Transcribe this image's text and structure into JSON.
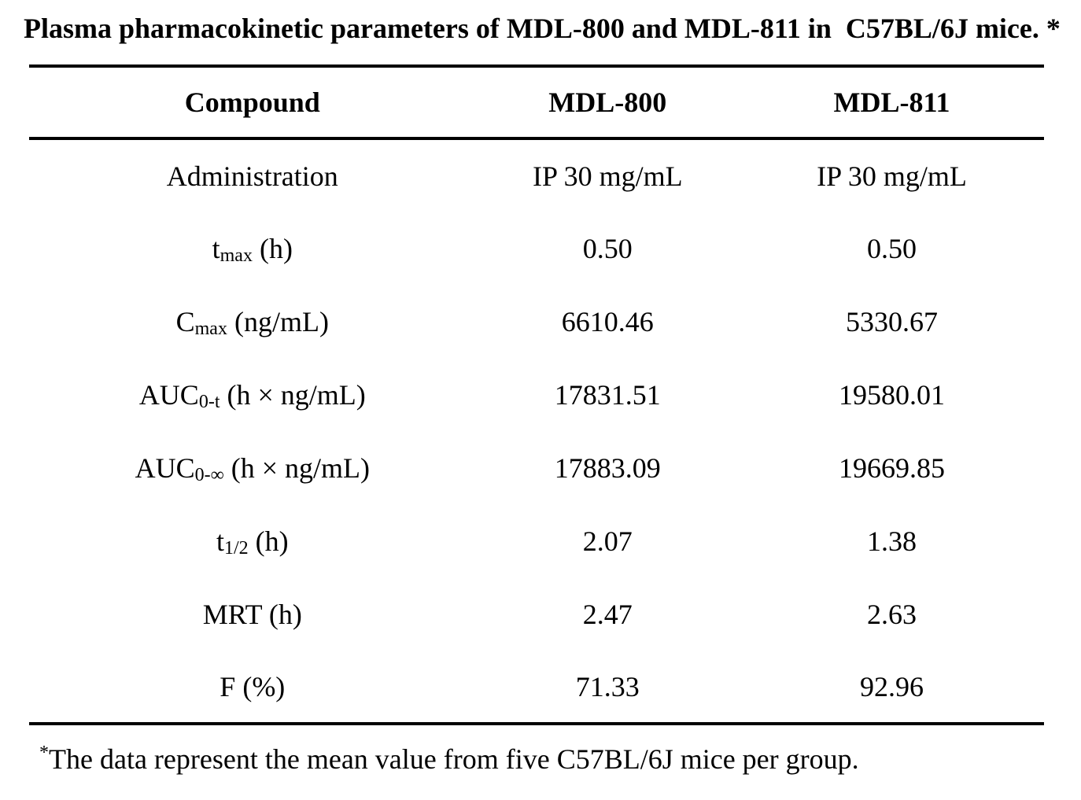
{
  "colors": {
    "background": "#ffffff",
    "text": "#000000",
    "rule": "#000000"
  },
  "title": "Plasma pharmacokinetic parameters of MDL-800 and MDL-811 in  C57BL/6J mice. *",
  "table": {
    "headers": [
      "Compound",
      "MDL-800",
      "MDL-811"
    ],
    "rows": [
      {
        "param_base": "Administration",
        "param_sub": "",
        "param_suffix": "",
        "mdl800": "IP 30 mg/mL",
        "mdl811": "IP 30 mg/mL"
      },
      {
        "param_base": "t",
        "param_sub": "max",
        "param_suffix": " (h)",
        "mdl800": "0.50",
        "mdl811": "0.50"
      },
      {
        "param_base": "C",
        "param_sub": "max",
        "param_suffix": " (ng/mL)",
        "mdl800": "6610.46",
        "mdl811": "5330.67"
      },
      {
        "param_base": "AUC",
        "param_sub": "0-t",
        "param_suffix": " (h × ng/mL)",
        "mdl800": "17831.51",
        "mdl811": "19580.01"
      },
      {
        "param_base": "AUC",
        "param_sub": "0-∞",
        "param_suffix": " (h × ng/mL)",
        "mdl800": "17883.09",
        "mdl811": "19669.85"
      },
      {
        "param_base": "t",
        "param_sub": "1/2",
        "param_suffix": " (h)",
        "mdl800": "2.07",
        "mdl811": "1.38"
      },
      {
        "param_base": "MRT",
        "param_sub": "",
        "param_suffix": " (h)",
        "mdl800": "2.47",
        "mdl811": "2.63"
      },
      {
        "param_base": "F",
        "param_sub": "",
        "param_suffix": " (%)",
        "mdl800": "71.33",
        "mdl811": "92.96"
      }
    ]
  },
  "footnote": {
    "marker": "*",
    "text": "The data represent the mean value from five C57BL/6J mice per group."
  }
}
